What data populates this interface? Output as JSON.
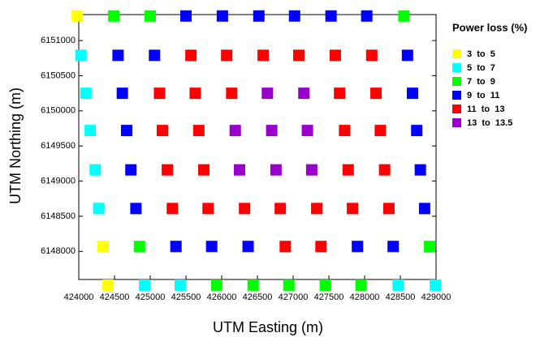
{
  "chart_data": {
    "type": "scatter",
    "x_label": "UTM Easting (m)",
    "y_label": "UTM Northing (m)",
    "legend_title": "Power loss (%)",
    "legend_position": "right",
    "xlim": [
      424000,
      429000
    ],
    "ylim": [
      6147600,
      6151370
    ],
    "xticks": [
      424000,
      424500,
      425000,
      425500,
      426000,
      426500,
      427000,
      427500,
      428000,
      428500,
      429000
    ],
    "yticks": [
      6148000,
      6148500,
      6149000,
      6149500,
      6150000,
      6150500,
      6151000
    ],
    "series": [
      {
        "name": "3  to  5",
        "color": "#ffff00",
        "x": [
          423980,
          424340,
          424410
        ],
        "y": [
          6151350,
          6148070,
          6147520
        ]
      },
      {
        "name": "5  to  7",
        "color": "#00ffff",
        "x": [
          424030,
          424100,
          424160,
          424230,
          424280,
          424920,
          425420,
          428470,
          428990
        ],
        "y": [
          6150790,
          6150250,
          6149720,
          6149160,
          6148610,
          6147520,
          6147520,
          6147520,
          6147520
        ]
      },
      {
        "name": "7  to  9",
        "color": "#00ff00",
        "x": [
          424490,
          425000,
          428550,
          424850,
          428910,
          425930,
          426440,
          426940,
          427450,
          427950
        ],
        "y": [
          6151350,
          6151350,
          6151350,
          6148070,
          6148070,
          6147520,
          6147520,
          6147520,
          6147520,
          6147520
        ]
      },
      {
        "name": "9  to  11",
        "color": "#0000ff",
        "x": [
          425500,
          426010,
          426520,
          427020,
          427530,
          428030,
          424550,
          425060,
          428600,
          424610,
          428670,
          424670,
          428730,
          424730,
          428780,
          424800,
          428840,
          425360,
          425860,
          426370,
          427900,
          428400
        ],
        "y": [
          6151350,
          6151350,
          6151350,
          6151350,
          6151350,
          6151350,
          6150790,
          6150790,
          6150790,
          6150250,
          6150250,
          6149720,
          6149720,
          6149160,
          6149160,
          6148610,
          6148610,
          6148070,
          6148070,
          6148070,
          6148070,
          6148070
        ]
      },
      {
        "name": "11  to  13",
        "color": "#ff0000",
        "x": [
          425570,
          426070,
          426580,
          427080,
          427590,
          428100,
          425130,
          425630,
          426140,
          427650,
          428160,
          425170,
          425680,
          427720,
          428220,
          425240,
          425750,
          427770,
          428280,
          425310,
          425810,
          426320,
          426820,
          427330,
          427830,
          428340,
          426890,
          427390
        ],
        "y": [
          6150790,
          6150790,
          6150790,
          6150790,
          6150790,
          6150790,
          6150250,
          6150250,
          6150250,
          6150250,
          6150250,
          6149720,
          6149720,
          6149720,
          6149720,
          6149160,
          6149160,
          6149160,
          6149160,
          6148610,
          6148610,
          6148610,
          6148610,
          6148610,
          6148610,
          6148610,
          6148070,
          6148070
        ]
      },
      {
        "name": "13  to  13.5",
        "color": "#9900cc",
        "x": [
          426640,
          427150,
          426190,
          426700,
          427200,
          426250,
          426760,
          427260
        ],
        "y": [
          6150250,
          6150250,
          6149720,
          6149720,
          6149720,
          6149160,
          6149160,
          6149160
        ]
      }
    ]
  }
}
